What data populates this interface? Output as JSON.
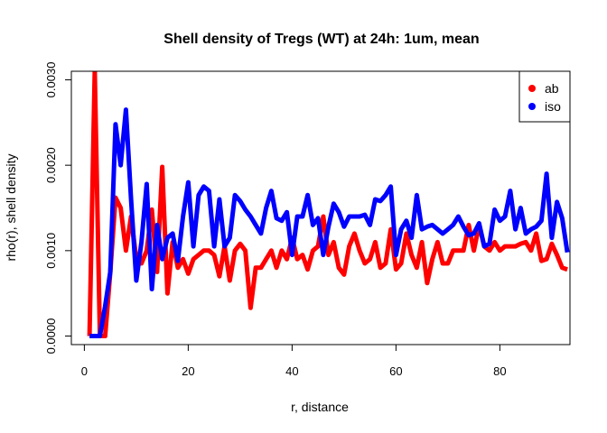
{
  "chart_data": {
    "type": "line",
    "title": "Shell density of Tregs (WT) at 24h: 1um, mean",
    "xlabel": "r, distance",
    "ylabel": "rho(r), shell density",
    "xlim": [
      -2.5,
      93.5
    ],
    "ylim": [
      -0.0001,
      0.0031
    ],
    "x_ticks": [
      0,
      20,
      40,
      60,
      80
    ],
    "y_ticks": [
      0.0,
      0.001,
      0.002,
      0.003
    ],
    "y_tick_labels": [
      "0.0000",
      "0.0010",
      "0.0020",
      "0.0030"
    ],
    "legend_position": "top-right",
    "grid": false,
    "series": [
      {
        "name": "ab",
        "color": "#ff0000",
        "x": [
          1,
          2,
          3,
          4,
          5,
          6,
          7,
          8,
          9,
          10,
          11,
          12,
          13,
          14,
          15,
          16,
          17,
          18,
          19,
          20,
          21,
          22,
          23,
          24,
          25,
          26,
          27,
          28,
          29,
          30,
          31,
          32,
          33,
          34,
          35,
          36,
          37,
          38,
          39,
          40,
          41,
          42,
          43,
          44,
          45,
          46,
          47,
          48,
          49,
          50,
          51,
          52,
          53,
          54,
          55,
          56,
          57,
          58,
          59,
          60,
          61,
          62,
          63,
          64,
          65,
          66,
          67,
          68,
          69,
          70,
          71,
          72,
          73,
          74,
          75,
          76,
          77,
          78,
          79,
          80,
          81,
          82,
          83,
          84,
          85,
          86,
          87,
          88,
          89,
          90,
          91,
          92,
          93
        ],
        "values": [
          0,
          0.0031,
          0,
          0,
          0.00075,
          0.00162,
          0.0015,
          0.001,
          0.0014,
          0.0009,
          0.00085,
          0.001,
          0.00148,
          0.00075,
          0.00198,
          0.0005,
          0.0011,
          0.0008,
          0.0009,
          0.00073,
          0.0009,
          0.00095,
          0.001,
          0.001,
          0.00095,
          0.0007,
          0.00105,
          0.00065,
          0.001,
          0.00108,
          0.001,
          0.00033,
          0.0008,
          0.0008,
          0.0009,
          0.001,
          0.0008,
          0.001,
          0.0009,
          0.00115,
          0.0009,
          0.00095,
          0.00078,
          0.001,
          0.00105,
          0.0014,
          0.00095,
          0.0011,
          0.0008,
          0.00072,
          0.00105,
          0.0012,
          0.001,
          0.00085,
          0.0009,
          0.0011,
          0.0008,
          0.00085,
          0.00125,
          0.00078,
          0.00085,
          0.0012,
          0.00095,
          0.0008,
          0.0011,
          0.00062,
          0.0009,
          0.0011,
          0.00085,
          0.00085,
          0.001,
          0.001,
          0.001,
          0.0013,
          0.001,
          0.0013,
          0.00105,
          0.001,
          0.0011,
          0.001,
          0.00105,
          0.00105,
          0.00105,
          0.00108,
          0.0011,
          0.001,
          0.0012,
          0.00088,
          0.0009,
          0.00108,
          0.00095,
          0.0008,
          0.00078
        ]
      },
      {
        "name": "iso",
        "color": "#0000ff",
        "x": [
          1,
          2,
          3,
          4,
          5,
          6,
          7,
          8,
          9,
          10,
          11,
          12,
          13,
          14,
          15,
          16,
          17,
          18,
          19,
          20,
          21,
          22,
          23,
          24,
          25,
          26,
          27,
          28,
          29,
          30,
          31,
          32,
          33,
          34,
          35,
          36,
          37,
          38,
          39,
          40,
          41,
          42,
          43,
          44,
          45,
          46,
          47,
          48,
          49,
          50,
          51,
          52,
          53,
          54,
          55,
          56,
          57,
          58,
          59,
          60,
          61,
          62,
          63,
          64,
          65,
          66,
          67,
          68,
          69,
          70,
          71,
          72,
          73,
          74,
          75,
          76,
          77,
          78,
          79,
          80,
          81,
          82,
          83,
          84,
          85,
          86,
          87,
          88,
          89,
          90,
          91,
          92,
          93
        ],
        "values": [
          0,
          0,
          0,
          0.00035,
          0.00075,
          0.00248,
          0.002,
          0.00265,
          0.0016,
          0.00065,
          0.0011,
          0.00178,
          0.00055,
          0.0013,
          0.0009,
          0.00115,
          0.0012,
          0.00088,
          0.0014,
          0.0018,
          0.00105,
          0.00165,
          0.00175,
          0.0017,
          0.00105,
          0.0016,
          0.00105,
          0.00115,
          0.00165,
          0.00158,
          0.00148,
          0.0014,
          0.0013,
          0.0012,
          0.0015,
          0.0017,
          0.00138,
          0.00135,
          0.00145,
          0.00095,
          0.0014,
          0.0014,
          0.00165,
          0.0013,
          0.00138,
          0.00095,
          0.00128,
          0.00155,
          0.00145,
          0.00128,
          0.0014,
          0.0014,
          0.0014,
          0.00142,
          0.0013,
          0.0016,
          0.00158,
          0.00165,
          0.00175,
          0.00095,
          0.00125,
          0.00135,
          0.00115,
          0.00165,
          0.00125,
          0.00128,
          0.0013,
          0.00125,
          0.0012,
          0.00125,
          0.0013,
          0.0014,
          0.00128,
          0.00118,
          0.0012,
          0.00132,
          0.00105,
          0.00108,
          0.00148,
          0.00135,
          0.0014,
          0.0017,
          0.00125,
          0.0015,
          0.0012,
          0.00125,
          0.00128,
          0.00135,
          0.0019,
          0.00115,
          0.00157,
          0.00138,
          0.00098
        ]
      }
    ]
  }
}
